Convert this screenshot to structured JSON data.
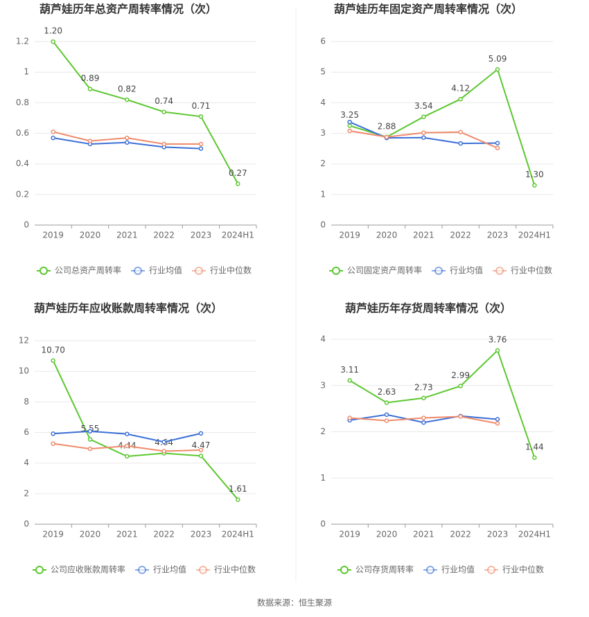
{
  "chart_data": [
    {
      "type": "line",
      "title": "葫芦娃历年总资产周转率情况（次）",
      "categories": [
        "2019",
        "2020",
        "2021",
        "2022",
        "2023",
        "2024H1"
      ],
      "series": [
        {
          "name": "公司总资产周转率",
          "color": "#5cc72f",
          "values": [
            1.2,
            0.89,
            0.82,
            0.74,
            0.71,
            0.27
          ],
          "value_labels": [
            "1.20",
            "0.89",
            "0.82",
            "0.74",
            "0.71",
            "0.27"
          ]
        },
        {
          "name": "行业均值",
          "color": "#3b6fd6",
          "values": [
            0.57,
            0.53,
            0.54,
            0.51,
            0.5,
            null
          ]
        },
        {
          "name": "行业中位数",
          "color": "#f08a6a",
          "values": [
            0.61,
            0.55,
            0.57,
            0.53,
            0.53,
            null
          ]
        }
      ],
      "ylim": [
        0,
        1.3
      ],
      "yticks": [
        0,
        0.2,
        0.4,
        0.6,
        0.8,
        1,
        1.2
      ],
      "grid": true,
      "legend": "bottom"
    },
    {
      "type": "line",
      "title": "葫芦娃历年固定资产周转率情况（次）",
      "categories": [
        "2019",
        "2020",
        "2021",
        "2022",
        "2023",
        "2024H1"
      ],
      "series": [
        {
          "name": "公司固定资产周转率",
          "color": "#5cc72f",
          "values": [
            3.25,
            2.88,
            3.54,
            4.12,
            5.09,
            1.3
          ],
          "value_labels": [
            "3.25",
            "2.88",
            "3.54",
            "4.12",
            "5.09",
            "1.30"
          ]
        },
        {
          "name": "行业均值",
          "color": "#3b6fd6",
          "values": [
            3.37,
            2.85,
            2.86,
            2.67,
            2.68,
            null
          ]
        },
        {
          "name": "行业中位数",
          "color": "#f08a6a",
          "values": [
            3.08,
            2.88,
            3.02,
            3.04,
            2.52,
            null
          ]
        }
      ],
      "ylim": [
        0,
        6.5
      ],
      "yticks": [
        0,
        1,
        2,
        3,
        4,
        5,
        6
      ],
      "grid": true,
      "legend": "bottom"
    },
    {
      "type": "line",
      "title": "葫芦娃历年应收账款周转率情况（次）",
      "categories": [
        "2019",
        "2020",
        "2021",
        "2022",
        "2023",
        "2024H1"
      ],
      "series": [
        {
          "name": "公司应收账款周转率",
          "color": "#5cc72f",
          "values": [
            10.7,
            5.55,
            4.44,
            4.64,
            4.47,
            1.61
          ],
          "value_labels": [
            "10.70",
            "5.55",
            "4.44",
            "4.64",
            "4.47",
            "1.61"
          ]
        },
        {
          "name": "行业均值",
          "color": "#3b6fd6",
          "values": [
            5.92,
            6.08,
            5.9,
            5.38,
            5.94,
            null
          ]
        },
        {
          "name": "行业中位数",
          "color": "#f08a6a",
          "values": [
            5.27,
            4.93,
            5.12,
            4.78,
            4.85,
            null
          ]
        }
      ],
      "ylim": [
        0,
        13
      ],
      "yticks": [
        0,
        2,
        4,
        6,
        8,
        10,
        12
      ],
      "grid": true,
      "legend": "bottom"
    },
    {
      "type": "line",
      "title": "葫芦娃历年存货周转率情况（次）",
      "categories": [
        "2019",
        "2020",
        "2021",
        "2022",
        "2023",
        "2024H1"
      ],
      "series": [
        {
          "name": "公司存货周转率",
          "color": "#5cc72f",
          "values": [
            3.11,
            2.63,
            2.73,
            2.99,
            3.76,
            1.44
          ],
          "value_labels": [
            "3.11",
            "2.63",
            "2.73",
            "2.99",
            "3.76",
            "1.44"
          ]
        },
        {
          "name": "行业均值",
          "color": "#3b6fd6",
          "values": [
            2.25,
            2.37,
            2.2,
            2.34,
            2.27,
            null
          ]
        },
        {
          "name": "行业中位数",
          "color": "#f08a6a",
          "values": [
            2.3,
            2.24,
            2.3,
            2.33,
            2.18,
            null
          ]
        }
      ],
      "ylim": [
        0,
        4.3
      ],
      "yticks": [
        0,
        1,
        2,
        3,
        4
      ],
      "grid": true,
      "legend": "bottom"
    }
  ],
  "source": "数据来源：恒生聚源"
}
